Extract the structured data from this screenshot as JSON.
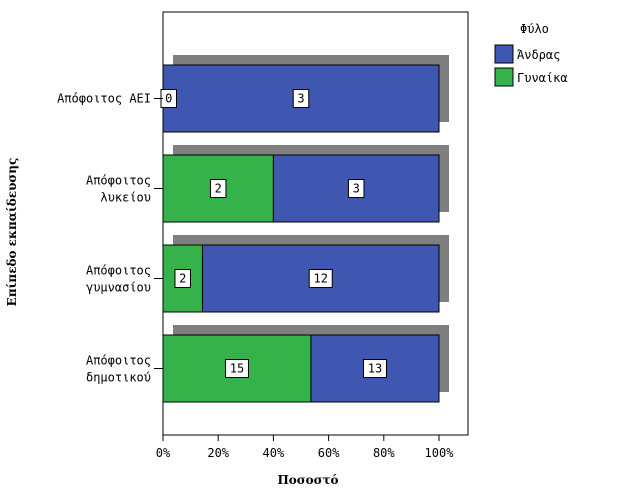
{
  "chart_data": {
    "type": "bar",
    "orientation": "horizontal",
    "stacked": "percent",
    "xlabel": "Ποσοστό",
    "ylabel": "Επίπεδο εκπαίδευσης",
    "xlim": [
      0,
      100
    ],
    "xticks": [
      "0%",
      "20%",
      "40%",
      "60%",
      "80%",
      "100%"
    ],
    "legend_title": "Φύλο",
    "legend_position": "top-right",
    "categories": [
      [
        "Απόφοιτος ΑΕΙ"
      ],
      [
        "Απόφοιτος",
        "λυκείου"
      ],
      [
        "Απόφοιτος",
        "γυμνασίου"
      ],
      [
        "Απόφοιτος",
        "δημοτικού"
      ]
    ],
    "series": [
      {
        "name": "Γυναίκα",
        "color": "#35b34a",
        "counts": [
          0,
          2,
          2,
          15
        ],
        "percent": [
          0,
          40,
          14.3,
          53.6
        ],
        "labels": [
          "0",
          "2",
          "2",
          "15"
        ]
      },
      {
        "name": "Άνδρας",
        "color": "#3f57b0",
        "counts": [
          3,
          3,
          12,
          13
        ],
        "percent": [
          100,
          60,
          85.7,
          46.4
        ],
        "labels": [
          "3",
          "3",
          "12",
          "13"
        ]
      }
    ],
    "shadow_color": "#7f7f7f"
  }
}
